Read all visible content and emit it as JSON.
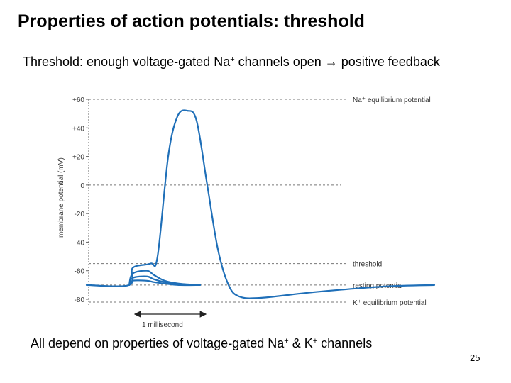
{
  "slide": {
    "title": "Properties of action potentials: threshold",
    "subtitle_pre": "Threshold: enough voltage-gated Na",
    "subtitle_sup": "+",
    "subtitle_mid": " channels open ",
    "subtitle_arrow": "→",
    "subtitle_post": " positive feedback",
    "footer_pre": "All depend on properties of voltage-gated Na",
    "footer_sup1": "+",
    "footer_mid": " & K",
    "footer_sup2": "+",
    "footer_post": " channels",
    "page_number": "25"
  },
  "chart_data": {
    "type": "line",
    "ylabel": "membrane potential (mV)",
    "ylim": [
      -85,
      62
    ],
    "ytick_labels": [
      "+60",
      "+40",
      "+20",
      "0",
      "-20",
      "-40",
      "-60",
      "-80"
    ],
    "yticks": [
      60,
      40,
      20,
      0,
      -20,
      -40,
      -60,
      -80
    ],
    "time_scale_label": "1 millisecond",
    "reference_lines": [
      {
        "name": "na-equilibrium",
        "label": "Na⁺ equilibrium potential",
        "value": 60
      },
      {
        "name": "zero-line",
        "label": "",
        "value": 0
      },
      {
        "name": "threshold",
        "label": "threshold",
        "value": -55
      },
      {
        "name": "resting",
        "label": "resting potential",
        "value": -70
      },
      {
        "name": "k-equilibrium",
        "label": "K⁺ equilibrium potential",
        "value": -82
      }
    ],
    "series": [
      {
        "name": "action-potential",
        "color": "#1f6fb8",
        "points": [
          [
            0,
            -70
          ],
          [
            0.6,
            -70
          ],
          [
            0.65,
            -58
          ],
          [
            0.9,
            -55
          ],
          [
            1.0,
            -50
          ],
          [
            1.15,
            20
          ],
          [
            1.28,
            48
          ],
          [
            1.42,
            52
          ],
          [
            1.55,
            45
          ],
          [
            1.7,
            0
          ],
          [
            1.85,
            -45
          ],
          [
            2.0,
            -70
          ],
          [
            2.15,
            -78
          ],
          [
            2.45,
            -79
          ],
          [
            3.2,
            -75
          ],
          [
            4.2,
            -71
          ],
          [
            4.9,
            -70
          ]
        ]
      },
      {
        "name": "subthreshold-1",
        "color": "#1f6fb8",
        "points": [
          [
            0.6,
            -70
          ],
          [
            0.65,
            -62
          ],
          [
            0.85,
            -60
          ],
          [
            0.95,
            -63
          ],
          [
            1.1,
            -67
          ],
          [
            1.3,
            -69
          ],
          [
            1.6,
            -70
          ]
        ]
      },
      {
        "name": "subthreshold-2",
        "color": "#1f6fb8",
        "points": [
          [
            0.6,
            -70
          ],
          [
            0.65,
            -65
          ],
          [
            0.85,
            -64
          ],
          [
            0.95,
            -66
          ],
          [
            1.1,
            -68
          ],
          [
            1.3,
            -69.5
          ],
          [
            1.6,
            -70
          ]
        ]
      },
      {
        "name": "subthreshold-3",
        "color": "#1f6fb8",
        "points": [
          [
            0.6,
            -70
          ],
          [
            0.65,
            -67
          ],
          [
            0.85,
            -67
          ],
          [
            0.95,
            -68
          ],
          [
            1.1,
            -69
          ],
          [
            1.3,
            -70
          ],
          [
            1.6,
            -70
          ]
        ]
      }
    ],
    "xlim": [
      0,
      4.9
    ],
    "scale_bar_ms": 1
  }
}
